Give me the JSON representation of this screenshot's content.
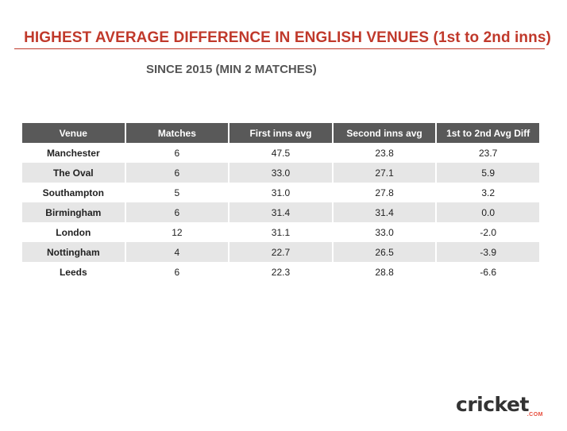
{
  "title": "HIGHEST AVERAGE DIFFERENCE IN ENGLISH VENUES (1st to 2nd inns)",
  "subtitle": "SINCE 2015 (MIN 2 MATCHES)",
  "colors": {
    "title": "#c0392b",
    "header_bg": "#595959",
    "alt_row": "#e6e6e6"
  },
  "chart_data": {
    "type": "table",
    "columns": [
      "Venue",
      "Matches",
      "First inns avg",
      "Second inns avg",
      "1st to 2nd Avg Diff"
    ],
    "rows": [
      [
        "Manchester",
        "6",
        "47.5",
        "23.8",
        "23.7"
      ],
      [
        "The Oval",
        "6",
        "33.0",
        "27.1",
        "5.9"
      ],
      [
        "Southampton",
        "5",
        "31.0",
        "27.8",
        "3.2"
      ],
      [
        "Birmingham",
        "6",
        "31.4",
        "31.4",
        "0.0"
      ],
      [
        "London",
        "12",
        "31.1",
        "33.0",
        "-2.0"
      ],
      [
        "Nottingham",
        "4",
        "22.7",
        "26.5",
        "-3.9"
      ],
      [
        "Leeds",
        "6",
        "22.3",
        "28.8",
        "-6.6"
      ]
    ]
  },
  "logo": {
    "name": "cricket.com",
    "main_text": "cricket",
    "sub_text": ".COM"
  }
}
